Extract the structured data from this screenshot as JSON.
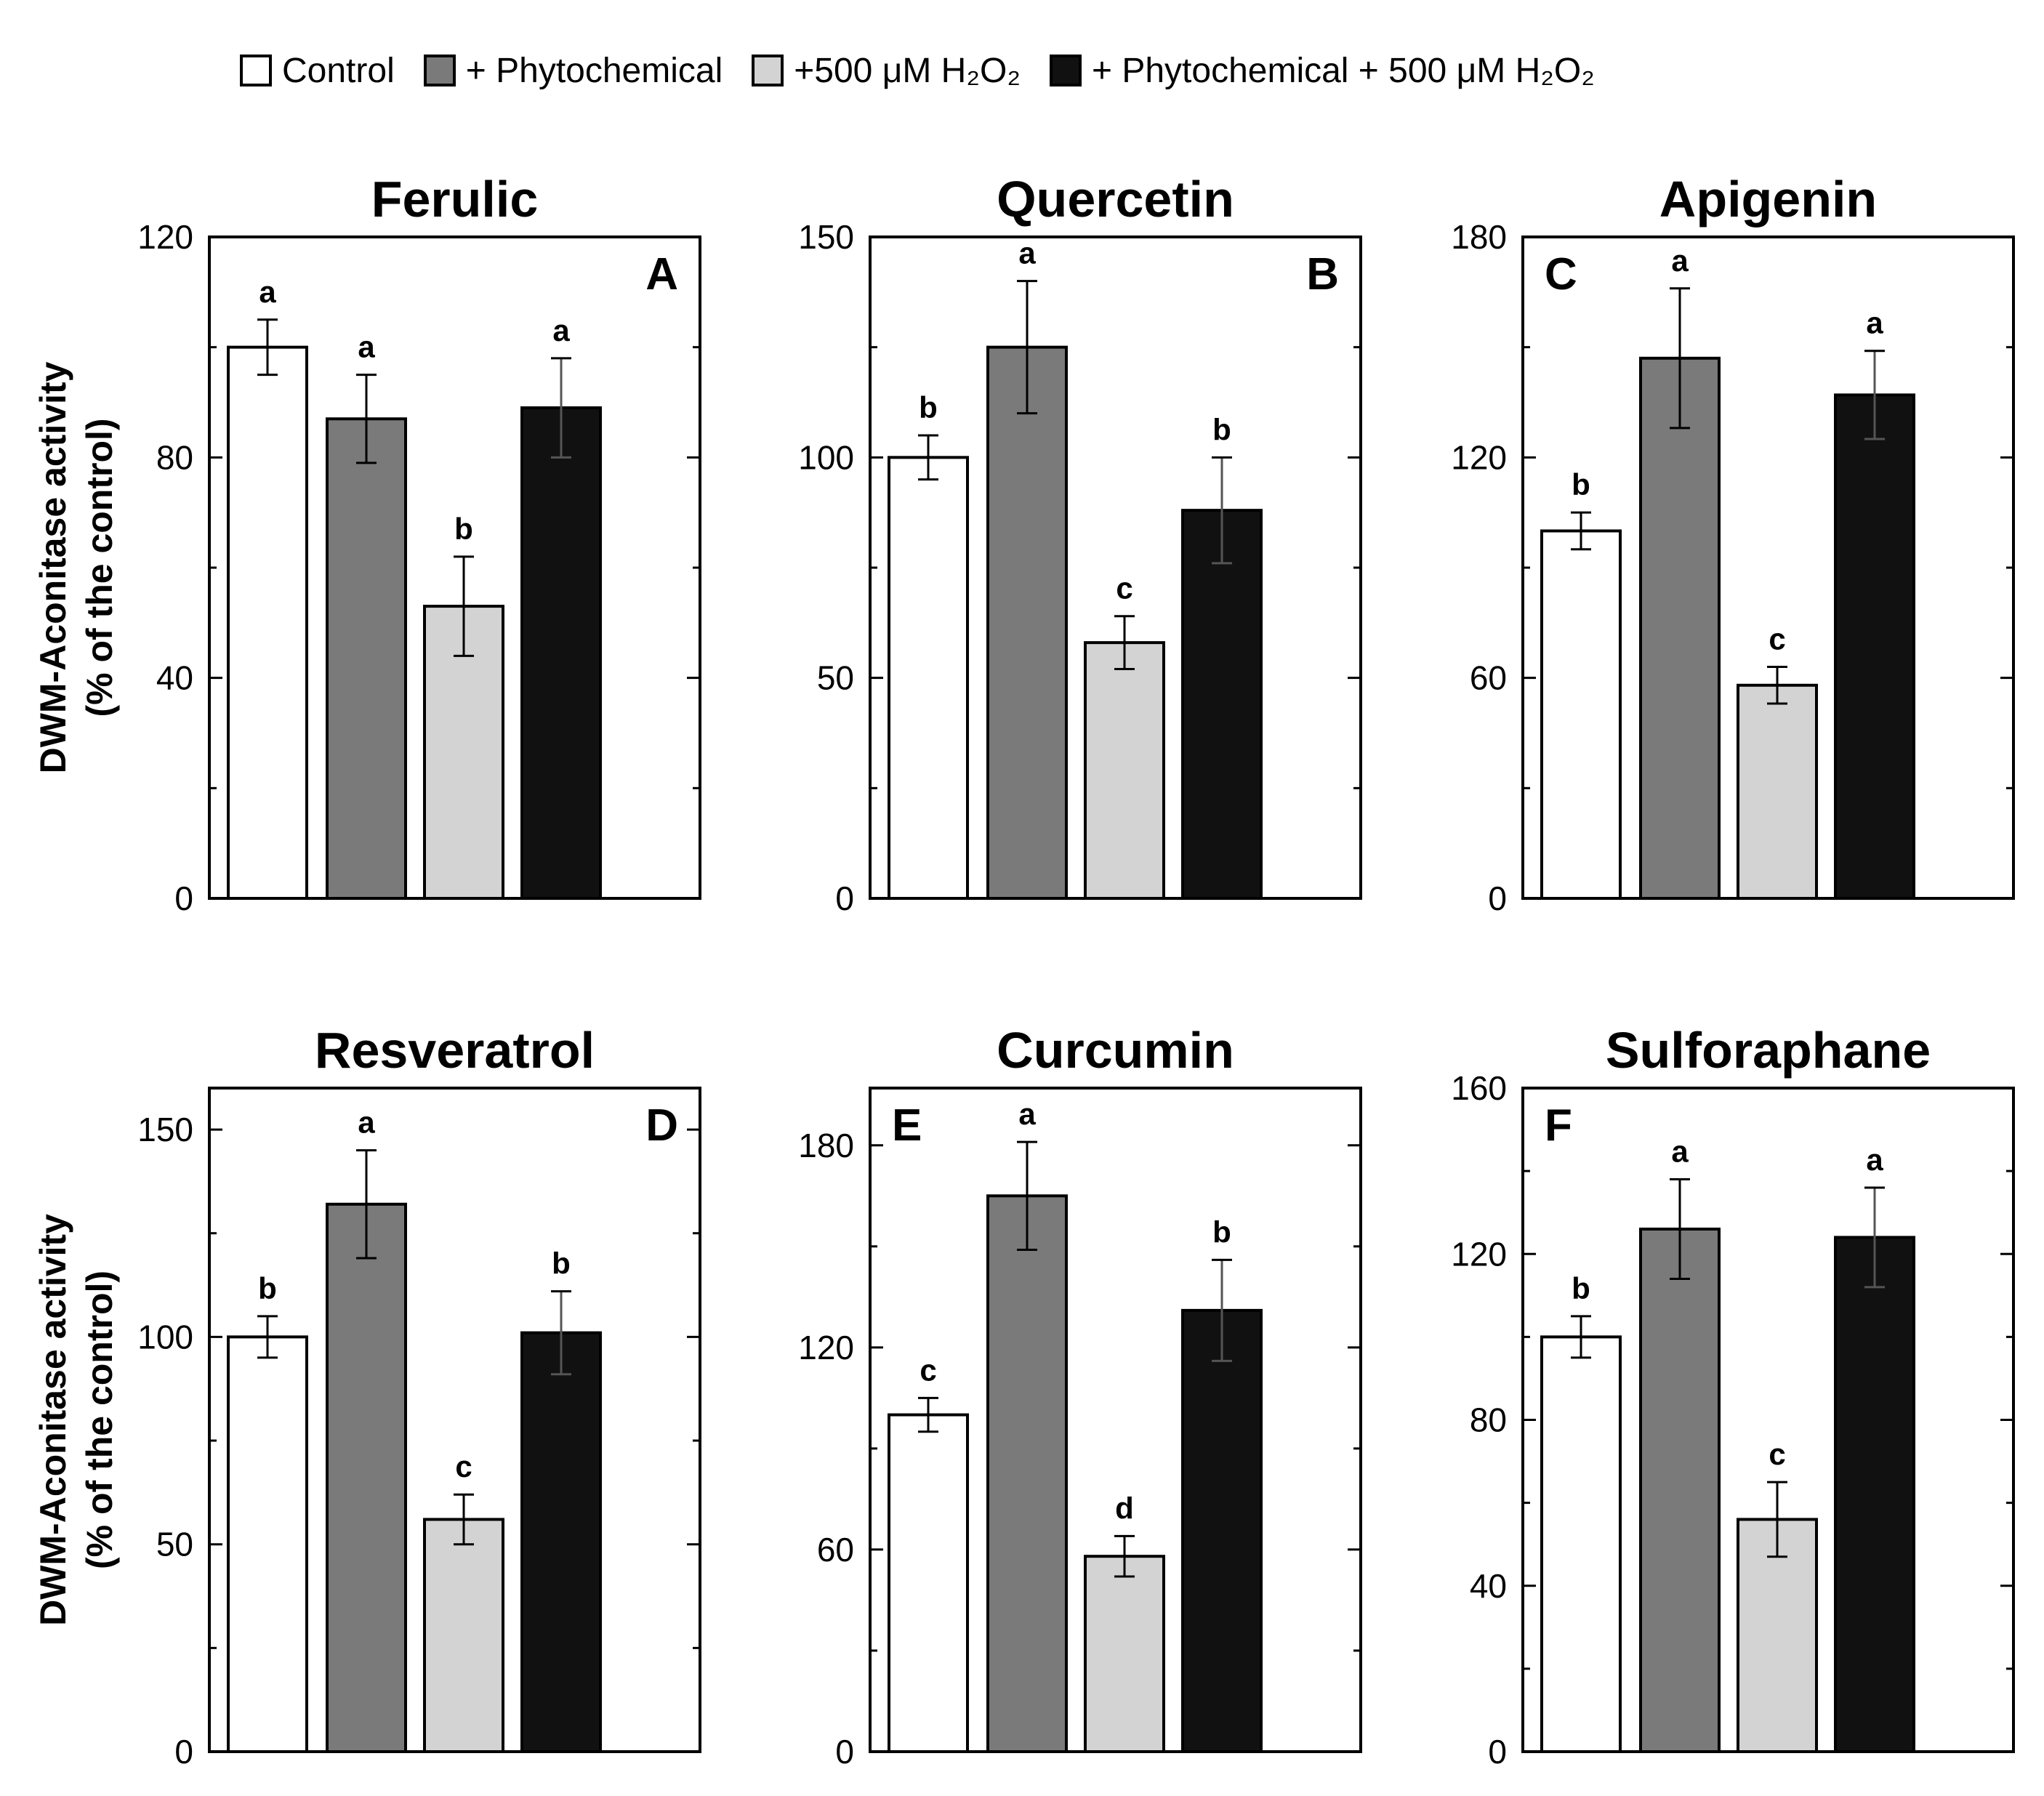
{
  "legend": {
    "items": [
      {
        "label": "Control",
        "color": "#ffffff"
      },
      {
        "label": "+ Phytochemical",
        "color": "#7a7a7a"
      },
      {
        "label": "+500 μM H₂O₂",
        "color": "#d3d3d3"
      },
      {
        "label": "+ Phytochemical + 500 μM H₂O₂",
        "color": "#111111"
      }
    ]
  },
  "ylabel_line1": "DWM-Aconitase activity",
  "ylabel_line2": "(% of the control)",
  "chart_data": [
    {
      "type": "bar",
      "title": "Ferulic",
      "letter": "A",
      "letter_pos": "top-right",
      "ylim": [
        0,
        120
      ],
      "yticks": [
        0,
        40,
        80,
        120
      ],
      "categories": [
        "Control",
        "+ Phytochemical",
        "+500 μM H₂O₂",
        "+ Phytochemical + 500 μM H₂O₂"
      ],
      "values": [
        100,
        87,
        53,
        89
      ],
      "errors": [
        5,
        8,
        9,
        9
      ],
      "sig": [
        "a",
        "a",
        "b",
        "a"
      ]
    },
    {
      "type": "bar",
      "title": "Quercetin",
      "letter": "B",
      "letter_pos": "top-right",
      "ylim": [
        0,
        150
      ],
      "yticks": [
        0,
        50,
        100,
        150
      ],
      "categories": [
        "Control",
        "+ Phytochemical",
        "+500 μM H₂O₂",
        "+ Phytochemical + 500 μM H₂O₂"
      ],
      "values": [
        100,
        125,
        58,
        88
      ],
      "errors": [
        5,
        15,
        6,
        12
      ],
      "sig": [
        "b",
        "a",
        "c",
        "b"
      ]
    },
    {
      "type": "bar",
      "title": "Apigenin",
      "letter": "C",
      "letter_pos": "top-left",
      "ylim": [
        0,
        180
      ],
      "yticks": [
        0,
        60,
        120,
        180
      ],
      "categories": [
        "Control",
        "+ Phytochemical",
        "+500 μM H₂O₂",
        "+ Phytochemical + 500 μM H₂O₂"
      ],
      "values": [
        100,
        147,
        58,
        137
      ],
      "errors": [
        5,
        19,
        5,
        12
      ],
      "sig": [
        "b",
        "a",
        "c",
        "a"
      ]
    },
    {
      "type": "bar",
      "title": "Resveratrol",
      "letter": "D",
      "letter_pos": "top-right",
      "ylim": [
        0,
        160
      ],
      "yticks": [
        0,
        50,
        100,
        150
      ],
      "categories": [
        "Control",
        "+ Phytochemical",
        "+500 μM H₂O₂",
        "+ Phytochemical + 500 μM H₂O₂"
      ],
      "values": [
        100,
        132,
        56,
        101
      ],
      "errors": [
        5,
        13,
        6,
        10
      ],
      "sig": [
        "b",
        "a",
        "c",
        "b"
      ]
    },
    {
      "type": "bar",
      "title": "Curcumin",
      "letter": "E",
      "letter_pos": "top-left",
      "ylim": [
        0,
        197
      ],
      "yticks": [
        0,
        60,
        120,
        180
      ],
      "categories": [
        "Control",
        "+ Phytochemical",
        "+500 μM H₂O₂",
        "+ Phytochemical + 500 μM H₂O₂"
      ],
      "values": [
        100,
        165,
        58,
        131
      ],
      "errors": [
        5,
        16,
        6,
        15
      ],
      "sig": [
        "c",
        "a",
        "d",
        "b"
      ]
    },
    {
      "type": "bar",
      "title": "Sulforaphane",
      "letter": "F",
      "letter_pos": "top-left",
      "ylim": [
        0,
        160
      ],
      "yticks": [
        0,
        40,
        80,
        120,
        160
      ],
      "categories": [
        "Control",
        "+ Phytochemical",
        "+500 μM H₂O₂",
        "+ Phytochemical + 500 μM H₂O₂"
      ],
      "values": [
        100,
        126,
        56,
        124
      ],
      "errors": [
        5,
        12,
        9,
        12
      ],
      "sig": [
        "b",
        "a",
        "c",
        "a"
      ]
    }
  ]
}
